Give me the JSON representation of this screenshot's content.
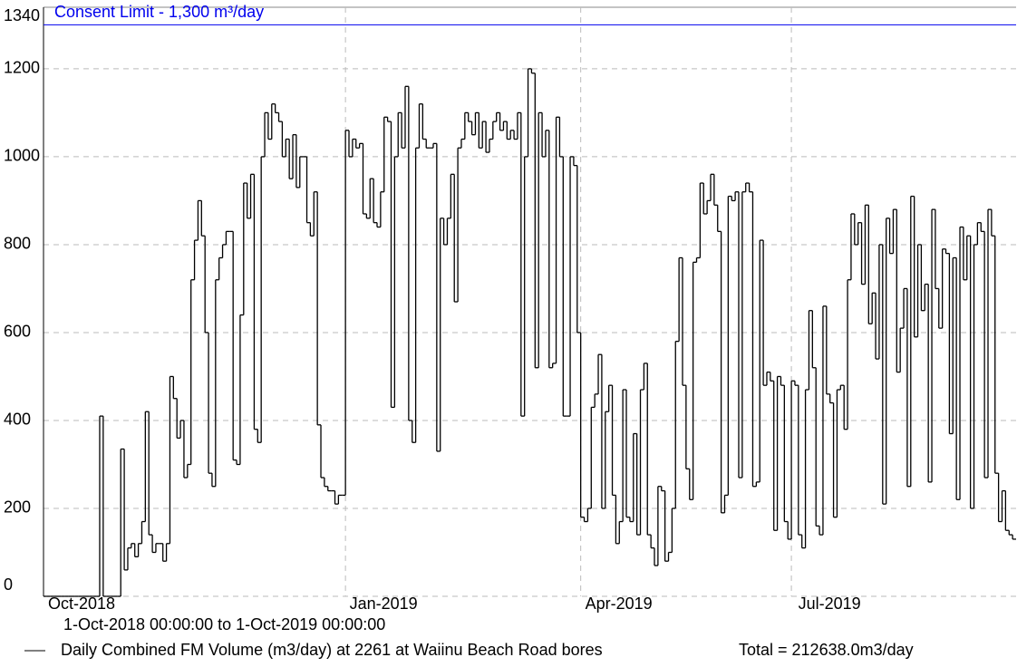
{
  "chart_data": {
    "type": "step",
    "ylim": [
      0,
      1340
    ],
    "yticks": [
      0,
      200,
      400,
      600,
      800,
      1000,
      1200,
      1340
    ],
    "grid": true,
    "reference_line": {
      "label": "Consent Limit - 1,300 m³/day",
      "value": 1300,
      "color": "#0000ee"
    },
    "period_label": "1-Oct-2018 00:00:00 to  1-Oct-2019 00:00:00",
    "total_label": "Total = 212638.0m3/day",
    "categories": [
      "Oct-2018",
      null,
      null,
      null,
      null,
      null,
      null,
      null,
      null,
      null,
      null,
      null,
      null,
      null,
      null,
      null,
      null,
      null,
      null,
      null,
      null,
      null,
      null,
      null,
      null,
      null,
      null,
      null,
      null,
      null,
      null,
      null,
      null,
      null,
      null,
      null,
      null,
      null,
      null,
      null,
      null,
      null,
      null,
      null,
      null,
      null,
      null,
      null,
      null,
      null,
      null,
      null,
      null,
      null,
      null,
      null,
      null,
      null,
      null,
      null,
      null,
      null,
      null,
      null,
      null,
      null,
      null,
      null,
      null,
      null,
      null,
      null,
      null,
      null,
      null,
      null,
      null,
      null,
      null,
      null,
      null,
      null,
      null,
      null,
      null,
      null,
      "Jan-2019",
      null,
      null,
      null,
      null,
      null,
      null,
      null,
      null,
      null,
      null,
      null,
      null,
      null,
      null,
      null,
      null,
      null,
      null,
      null,
      null,
      null,
      null,
      null,
      null,
      null,
      null,
      null,
      null,
      null,
      null,
      null,
      null,
      null,
      null,
      null,
      null,
      null,
      null,
      null,
      null,
      null,
      null,
      null,
      null,
      null,
      null,
      null,
      null,
      null,
      null,
      null,
      null,
      null,
      null,
      null,
      null,
      null,
      null,
      null,
      null,
      null,
      null,
      null,
      null,
      null,
      null,
      "Apr-2019",
      null,
      null,
      null,
      null,
      null,
      null,
      null,
      null,
      null,
      null,
      null,
      null,
      null,
      null,
      null,
      null,
      null,
      null,
      null,
      null,
      null,
      null,
      null,
      null,
      null,
      null,
      null,
      null,
      null,
      null,
      null,
      null,
      null,
      null,
      null,
      null,
      null,
      null,
      null,
      null,
      null,
      null,
      null,
      null,
      null,
      null,
      null,
      null,
      null,
      null,
      null,
      null,
      null,
      null,
      null,
      null,
      null,
      null,
      null,
      "Jul-2019",
      null,
      null,
      null,
      null,
      null,
      null,
      null,
      null,
      null,
      null,
      null,
      null,
      null,
      null,
      null,
      null,
      null,
      null,
      null,
      null,
      null,
      null,
      null,
      null,
      null,
      null,
      null,
      null,
      null,
      null,
      null,
      null,
      null,
      null,
      null,
      null,
      null,
      null,
      null,
      null,
      null,
      null,
      null,
      null,
      null,
      null,
      null,
      null,
      null,
      null,
      null,
      null,
      null,
      null,
      null,
      null,
      null,
      null,
      null,
      null,
      null,
      null,
      null
    ],
    "series": [
      {
        "name": "Daily Combined FM Volume (m3/day) at 2261 at Waiinu Beach Road bores",
        "color": "#000000",
        "values": [
          0,
          0,
          0,
          0,
          0,
          0,
          0,
          0,
          0,
          0,
          0,
          0,
          0,
          0,
          0,
          0,
          410,
          0,
          0,
          0,
          0,
          0,
          335,
          60,
          110,
          120,
          90,
          120,
          170,
          420,
          140,
          100,
          120,
          120,
          80,
          120,
          500,
          450,
          360,
          400,
          270,
          300,
          720,
          810,
          900,
          820,
          600,
          280,
          250,
          720,
          770,
          800,
          830,
          830,
          310,
          300,
          640,
          940,
          860,
          960,
          380,
          350,
          1000,
          1100,
          1040,
          1120,
          1100,
          1080,
          1000,
          1040,
          950,
          1050,
          930,
          1000,
          1000,
          850,
          820,
          920,
          390,
          270,
          250,
          240,
          240,
          210,
          230,
          230,
          1060,
          1000,
          1040,
          1020,
          1030,
          870,
          860,
          950,
          850,
          840,
          920,
          1090,
          1080,
          430,
          1000,
          1100,
          1020,
          1160,
          400,
          350,
          1020,
          1120,
          1040,
          1020,
          1020,
          1030,
          330,
          860,
          800,
          860,
          960,
          670,
          1020,
          1040,
          1100,
          1080,
          1050,
          1100,
          1020,
          1080,
          1010,
          1040,
          1080,
          1100,
          1060,
          1080,
          1040,
          1060,
          1040,
          1100,
          410,
          1000,
          1200,
          1190,
          520,
          1100,
          1000,
          1060,
          520,
          530,
          1090,
          1000,
          410,
          410,
          1000,
          980,
          600,
          180,
          170,
          200,
          430,
          460,
          550,
          200,
          420,
          480,
          230,
          120,
          170,
          470,
          180,
          170,
          370,
          140,
          470,
          530,
          140,
          110,
          70,
          250,
          240,
          80,
          100,
          200,
          580,
          770,
          480,
          290,
          220,
          760,
          770,
          940,
          870,
          900,
          960,
          890,
          830,
          190,
          230,
          910,
          900,
          920,
          270,
          920,
          940,
          920,
          250,
          260,
          810,
          480,
          510,
          490,
          150,
          500,
          480,
          170,
          130,
          490,
          480,
          140,
          110,
          470,
          650,
          520,
          160,
          140,
          660,
          460,
          440,
          180,
          470,
          480,
          380,
          720,
          870,
          800,
          850,
          710,
          890,
          620,
          690,
          540,
          800,
          210,
          860,
          780,
          880,
          510,
          610,
          700,
          250,
          910,
          590,
          800,
          650,
          710,
          260,
          880,
          700,
          610,
          790,
          780,
          370,
          770,
          220,
          840,
          720,
          820,
          200,
          800,
          850,
          830,
          270,
          880,
          820,
          280,
          170,
          240,
          150,
          140,
          130
        ]
      }
    ]
  }
}
